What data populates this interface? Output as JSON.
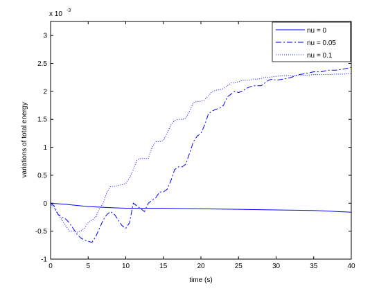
{
  "chart_data": {
    "type": "line",
    "xlabel": "time (s)",
    "ylabel": "variations of total energy",
    "exponent_base": "x 10",
    "exponent_power": "-3",
    "xlim": [
      0,
      40
    ],
    "ylim": [
      -1,
      3.25
    ],
    "xticks": [
      0,
      5,
      10,
      15,
      20,
      25,
      30,
      35,
      40
    ],
    "xtick_labels": [
      "0",
      "5",
      "10",
      "15",
      "20",
      "25",
      "30",
      "35",
      "40"
    ],
    "yticks": [
      -1,
      -0.5,
      0,
      0.5,
      1,
      1.5,
      2,
      2.5,
      3
    ],
    "ytick_labels": [
      "-1",
      "-0.5",
      "0",
      "0.5",
      "1",
      "1.5",
      "2",
      "2.5",
      "3"
    ],
    "legend_position": "top-right",
    "grid": false,
    "series": [
      {
        "name": "nu = 0",
        "style": "solid",
        "color": "#0000ff",
        "x": [
          0,
          2,
          5,
          8,
          10,
          13,
          15,
          20,
          25,
          30,
          35,
          40
        ],
        "y": [
          0,
          -0.02,
          -0.06,
          -0.08,
          -0.09,
          -0.09,
          -0.09,
          -0.1,
          -0.11,
          -0.12,
          -0.13,
          -0.16
        ]
      },
      {
        "name": "nu = 0.05",
        "style": "dashdot",
        "color": "#0000ff",
        "x": [
          0,
          0.5,
          1,
          1.5,
          2,
          2.5,
          3,
          3.5,
          4,
          4.5,
          5,
          5.5,
          6,
          6.5,
          7,
          7.5,
          8,
          8.5,
          9,
          9.5,
          10,
          10.5,
          11,
          11.5,
          12,
          12.5,
          13,
          13.5,
          14,
          14.5,
          15,
          15.5,
          16,
          16.5,
          17,
          17.5,
          18,
          18.5,
          19,
          19.5,
          20,
          20.5,
          21,
          21.5,
          22,
          22.5,
          23,
          23.5,
          24,
          24.5,
          25,
          25.5,
          26,
          26.5,
          27,
          27.5,
          28,
          28.5,
          29,
          29.5,
          30,
          31,
          32,
          33,
          34,
          35,
          36,
          37,
          38,
          39,
          40
        ],
        "y": [
          0,
          -0.05,
          -0.2,
          -0.25,
          -0.28,
          -0.35,
          -0.45,
          -0.55,
          -0.62,
          -0.66,
          -0.68,
          -0.7,
          -0.6,
          -0.45,
          -0.3,
          -0.2,
          -0.15,
          -0.2,
          -0.3,
          -0.4,
          -0.45,
          -0.35,
          0,
          -0.05,
          -0.1,
          -0.15,
          0,
          0.05,
          0.1,
          0.2,
          0.2,
          0.25,
          0.4,
          0.6,
          0.65,
          0.65,
          0.7,
          0.9,
          1.1,
          1.2,
          1.25,
          1.4,
          1.6,
          1.65,
          1.68,
          1.7,
          1.75,
          1.9,
          1.95,
          2.0,
          1.98,
          2.0,
          2.05,
          2.08,
          2.1,
          2.1,
          2.1,
          2.15,
          2.2,
          2.22,
          2.2,
          2.22,
          2.25,
          2.3,
          2.32,
          2.35,
          2.35,
          2.38,
          2.38,
          2.4,
          2.43
        ]
      },
      {
        "name": "nu = 0.1",
        "style": "dotted",
        "color": "#0000ff",
        "x": [
          0,
          0.5,
          1,
          1.5,
          2,
          2.5,
          3,
          3.5,
          4,
          4.5,
          5,
          5.5,
          6,
          6.5,
          7,
          7.5,
          8,
          8.5,
          9,
          9.5,
          10,
          10.5,
          11,
          11.5,
          12,
          12.5,
          13,
          13.5,
          14,
          14.5,
          15,
          15.5,
          16,
          16.5,
          17,
          17.5,
          18,
          18.5,
          19,
          19.5,
          20,
          20.5,
          21,
          21.5,
          22,
          22.5,
          23,
          23.5,
          24,
          24.5,
          25,
          25.5,
          26,
          26.5,
          27,
          27.5,
          28,
          28.5,
          29,
          29.5,
          30,
          31,
          32,
          33,
          34,
          35,
          36,
          37,
          38,
          39,
          40
        ],
        "y": [
          0,
          -0.1,
          -0.2,
          -0.3,
          -0.4,
          -0.5,
          -0.5,
          -0.52,
          -0.5,
          -0.45,
          -0.35,
          -0.3,
          -0.25,
          -0.1,
          0,
          0.2,
          0.3,
          0.3,
          0.32,
          0.33,
          0.35,
          0.45,
          0.6,
          0.78,
          0.8,
          0.8,
          0.8,
          1.0,
          1.1,
          1.1,
          1.12,
          1.25,
          1.4,
          1.48,
          1.5,
          1.5,
          1.52,
          1.65,
          1.8,
          1.82,
          1.82,
          1.85,
          1.92,
          2.0,
          2.02,
          2.03,
          2.05,
          2.1,
          2.15,
          2.15,
          2.17,
          2.2,
          2.2,
          2.2,
          2.22,
          2.22,
          2.23,
          2.25,
          2.25,
          2.26,
          2.27,
          2.28,
          2.28,
          2.29,
          2.29,
          2.3,
          2.3,
          2.3,
          2.31,
          2.31,
          2.32
        ]
      }
    ]
  }
}
